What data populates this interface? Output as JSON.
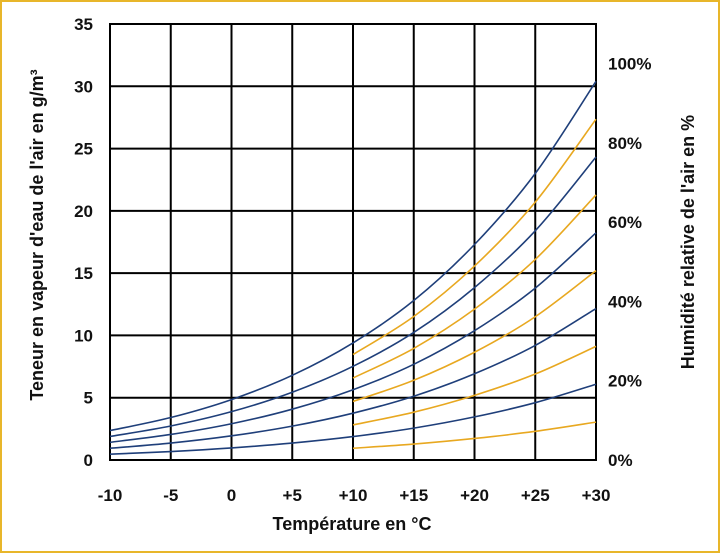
{
  "chart_data": {
    "type": "line",
    "xlabel": "Température en °C",
    "ylabel": "Teneur en vapeur d'eau de l'air en g/m³",
    "y2label": "Humidité relative de l'air en %",
    "xlim": [
      -10,
      30
    ],
    "ylim": [
      0,
      35
    ],
    "y2lim": [
      0,
      110
    ],
    "x_ticks": [
      -10,
      -5,
      0,
      5,
      10,
      15,
      20,
      25,
      30
    ],
    "x_tick_labels": [
      "-10",
      "-5",
      "0",
      "+5",
      "+10",
      "+15",
      "+20",
      "+25",
      "+30"
    ],
    "y_ticks": [
      0,
      5,
      10,
      15,
      20,
      25,
      30,
      35
    ],
    "y_tick_labels": [
      "0",
      "5",
      "10",
      "15",
      "20",
      "25",
      "30",
      "35"
    ],
    "y2_ticks": [
      0,
      20,
      40,
      60,
      80,
      100
    ],
    "y2_tick_labels": [
      "0%",
      "20%",
      "40%",
      "60%",
      "80%",
      "100%"
    ],
    "grid": true,
    "x": [
      -10,
      -5,
      0,
      5,
      10,
      15,
      20,
      25,
      30
    ],
    "series": [
      {
        "humidity": 100,
        "color": "#1f3f7a",
        "values": [
          2.36,
          3.41,
          4.85,
          6.8,
          9.4,
          12.8,
          17.3,
          23.0,
          30.4
        ]
      },
      {
        "humidity": 90,
        "color": "#e8a820",
        "values": [
          null,
          null,
          null,
          null,
          8.46,
          11.52,
          15.57,
          20.7,
          27.36
        ]
      },
      {
        "humidity": 80,
        "color": "#1f3f7a",
        "values": [
          1.89,
          2.73,
          3.88,
          5.44,
          7.52,
          10.24,
          13.84,
          18.4,
          24.32
        ]
      },
      {
        "humidity": 70,
        "color": "#e8a820",
        "values": [
          null,
          null,
          null,
          null,
          6.58,
          8.96,
          12.11,
          16.1,
          21.28
        ]
      },
      {
        "humidity": 60,
        "color": "#1f3f7a",
        "values": [
          1.42,
          2.05,
          2.91,
          4.08,
          5.64,
          7.68,
          10.38,
          13.8,
          18.24
        ]
      },
      {
        "humidity": 50,
        "color": "#e8a820",
        "values": [
          null,
          null,
          null,
          null,
          4.7,
          6.4,
          8.65,
          11.5,
          15.2
        ]
      },
      {
        "humidity": 40,
        "color": "#1f3f7a",
        "values": [
          0.94,
          1.36,
          1.94,
          2.72,
          3.76,
          5.12,
          6.92,
          9.2,
          12.16
        ]
      },
      {
        "humidity": 30,
        "color": "#e8a820",
        "values": [
          null,
          null,
          null,
          null,
          2.82,
          3.84,
          5.19,
          6.9,
          9.12
        ]
      },
      {
        "humidity": 20,
        "color": "#1f3f7a",
        "values": [
          0.47,
          0.68,
          0.97,
          1.36,
          1.88,
          2.56,
          3.46,
          4.6,
          6.08
        ]
      },
      {
        "humidity": 10,
        "color": "#e8a820",
        "values": [
          null,
          null,
          null,
          null,
          0.94,
          1.28,
          1.73,
          2.3,
          3.04
        ]
      }
    ]
  }
}
